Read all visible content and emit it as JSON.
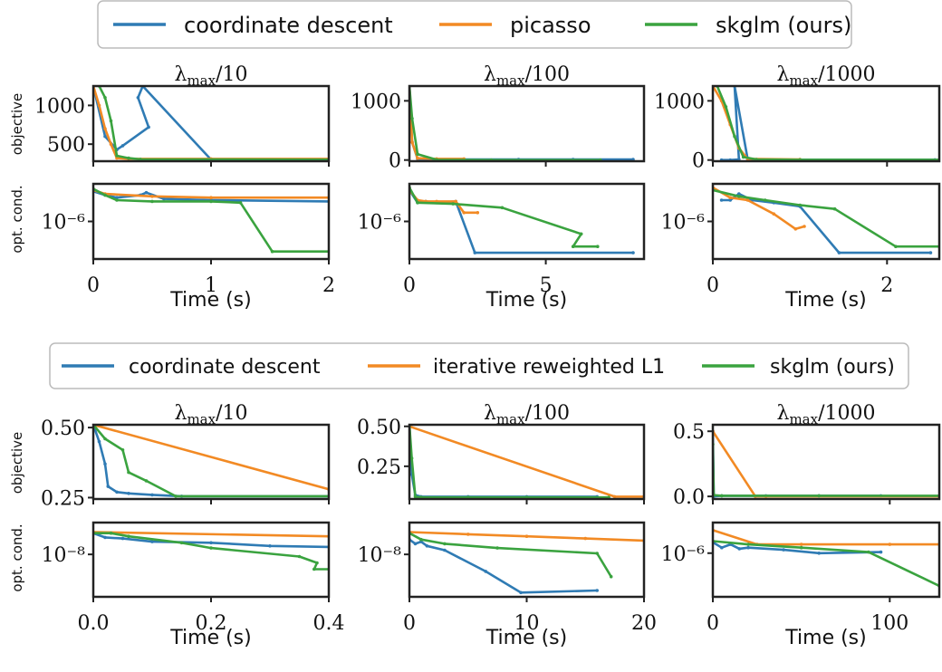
{
  "colors": {
    "cd": "#2f7bb4",
    "picasso": "#f28a24",
    "skglm": "#3aa33f",
    "irl1": "#f28a24",
    "axis": "#222222"
  },
  "legend_top": [
    {
      "key": "cd",
      "label": "coordinate descent"
    },
    {
      "key": "picasso",
      "label": "picasso"
    },
    {
      "key": "skglm",
      "label": "skglm (ours)"
    }
  ],
  "legend_bottom": [
    {
      "key": "cd",
      "label": "coordinate descent"
    },
    {
      "key": "irl1",
      "label": "iterative reweighted L1"
    },
    {
      "key": "skglm",
      "label": "skglm (ours)"
    }
  ],
  "ylabels": {
    "objective": "objective",
    "optcond": "opt. cond."
  },
  "xlabel": "Time (s)",
  "chart_data": [
    {
      "type": "line",
      "row": "top",
      "col": 0,
      "title": "λmax/10",
      "xlim": [
        0,
        2
      ],
      "xticks": [
        0,
        1,
        2
      ],
      "xtick_labels": [
        "0",
        "1",
        "2"
      ],
      "objective": {
        "ylim": [
          280,
          1250
        ],
        "yticks": [
          500,
          1000
        ],
        "ytick_labels": [
          "500",
          "1000"
        ],
        "series": [
          {
            "key": "cd",
            "x": [
              0.0,
              0.1,
              0.2,
              0.25,
              0.47,
              0.38,
              0.42,
              1.0,
              2.0
            ],
            "y": [
              1250,
              600,
              430,
              480,
              720,
              1100,
              1250,
              300,
              300
            ]
          },
          {
            "key": "picasso",
            "x": [
              0.0,
              0.05,
              0.1,
              0.15,
              0.2,
              0.3,
              1.0,
              2.0
            ],
            "y": [
              1250,
              1000,
              700,
              500,
              320,
              310,
              310,
              310
            ]
          },
          {
            "key": "skglm",
            "x": [
              0.05,
              0.1,
              0.15,
              0.2,
              0.3,
              0.4,
              2.0
            ],
            "y": [
              1250,
              1100,
              800,
              350,
              320,
              305,
              300
            ]
          }
        ]
      },
      "optcond": {
        "log": true,
        "ylim": [
          -9,
          -3
        ],
        "yticks": [
          -6
        ],
        "ytick_labels": [
          "10⁻⁶"
        ],
        "series": [
          {
            "key": "cd",
            "x": [
              0.0,
              0.1,
              0.2,
              0.4,
              0.45,
              0.6,
              1.0,
              2.0
            ],
            "y": [
              -3.6,
              -3.9,
              -4.1,
              -3.9,
              -3.7,
              -4.2,
              -4.3,
              -4.4
            ]
          },
          {
            "key": "picasso",
            "x": [
              0.0,
              0.1,
              0.5,
              1.0,
              2.0
            ],
            "y": [
              -3.5,
              -3.8,
              -4.0,
              -4.1,
              -4.1
            ]
          },
          {
            "key": "skglm",
            "x": [
              0.0,
              0.1,
              0.2,
              0.5,
              1.0,
              1.25,
              1.52,
              2.0
            ],
            "y": [
              -3.4,
              -3.9,
              -4.3,
              -4.4,
              -4.4,
              -4.5,
              -8.4,
              -8.4
            ]
          }
        ]
      }
    },
    {
      "type": "line",
      "row": "top",
      "col": 1,
      "title": "λmax/100",
      "xlim": [
        0,
        8.6
      ],
      "xticks": [
        0,
        5
      ],
      "xtick_labels": [
        "0",
        "5"
      ],
      "objective": {
        "ylim": [
          -20,
          1250
        ],
        "yticks": [
          0,
          1000
        ],
        "ytick_labels": [
          "0",
          "1000"
        ],
        "series": [
          {
            "key": "cd",
            "x": [
              0.0,
              0.1,
              0.3,
              1.0,
              2.0,
              4.0,
              6.0,
              8.2
            ],
            "y": [
              1250,
              300,
              20,
              10,
              10,
              10,
              10,
              10
            ]
          },
          {
            "key": "picasso",
            "x": [
              0.0,
              0.1,
              0.3,
              1.0,
              2.0
            ],
            "y": [
              1250,
              300,
              30,
              20,
              20
            ]
          },
          {
            "key": "skglm",
            "x": [
              0.0,
              0.1,
              0.3,
              1.0,
              3.0,
              7.0
            ],
            "y": [
              1250,
              700,
              100,
              5,
              0,
              0
            ]
          }
        ]
      },
      "optcond": {
        "log": true,
        "ylim": [
          -9,
          -3
        ],
        "yticks": [
          -6
        ],
        "ytick_labels": [
          "10⁻⁶"
        ],
        "series": [
          {
            "key": "cd",
            "x": [
              0.0,
              0.3,
              0.6,
              1.0,
              1.7,
              2.4,
              8.2
            ],
            "y": [
              -3.5,
              -4.5,
              -4.4,
              -4.5,
              -4.4,
              -8.5,
              -8.5
            ]
          },
          {
            "key": "picasso",
            "x": [
              0.0,
              0.3,
              0.6,
              1.0,
              1.7,
              2.0,
              2.5
            ],
            "y": [
              -3.5,
              -4.3,
              -4.4,
              -4.4,
              -4.4,
              -5.3,
              -5.3
            ]
          },
          {
            "key": "skglm",
            "x": [
              0.0,
              0.3,
              1.6,
              3.4,
              6.3,
              6.0,
              6.9
            ],
            "y": [
              -3.3,
              -4.5,
              -4.6,
              -4.9,
              -7.0,
              -8.0,
              -8.0
            ]
          }
        ]
      }
    },
    {
      "type": "line",
      "row": "top",
      "col": 2,
      "title": "λmax/1000",
      "xlim": [
        0,
        2.6
      ],
      "xticks": [
        0,
        2
      ],
      "xtick_labels": [
        "0",
        "2"
      ],
      "objective": {
        "ylim": [
          -20,
          1250
        ],
        "yticks": [
          0,
          1000
        ],
        "ytick_labels": [
          "0",
          "1000"
        ],
        "series": [
          {
            "key": "cd",
            "x": [
              0.1,
              0.2,
              0.3,
              0.25,
              0.4,
              1.0,
              2.55
            ],
            "y": [
              0,
              0,
              10,
              1250,
              10,
              5,
              5
            ]
          },
          {
            "key": "picasso",
            "x": [
              0.0,
              0.1,
              0.2,
              0.3,
              0.4,
              1.0
            ],
            "y": [
              1250,
              1000,
              600,
              200,
              20,
              10
            ]
          },
          {
            "key": "skglm",
            "x": [
              0.05,
              0.15,
              0.25,
              0.35,
              0.5,
              1.0,
              2.6
            ],
            "y": [
              1250,
              900,
              400,
              50,
              10,
              5,
              5
            ]
          }
        ]
      },
      "optcond": {
        "log": true,
        "ylim": [
          -9,
          -3
        ],
        "yticks": [
          -6
        ],
        "ytick_labels": [
          "10⁻⁶"
        ],
        "series": [
          {
            "key": "cd",
            "x": [
              0.1,
              0.2,
              0.3,
              0.45,
              0.7,
              1.0,
              1.45,
              2.5
            ],
            "y": [
              -4.3,
              -4.3,
              -3.8,
              -4.3,
              -4.5,
              -4.8,
              -8.5,
              -8.5
            ]
          },
          {
            "key": "picasso",
            "x": [
              0.0,
              0.2,
              0.4,
              0.7,
              0.95,
              1.05
            ],
            "y": [
              -3.3,
              -4.1,
              -4.3,
              -5.4,
              -6.6,
              -6.4
            ]
          },
          {
            "key": "skglm",
            "x": [
              0.0,
              0.3,
              0.6,
              1.0,
              1.4,
              2.1,
              2.6
            ],
            "y": [
              -3.5,
              -4.0,
              -4.3,
              -4.7,
              -5.0,
              -8.0,
              -8.0
            ]
          }
        ]
      }
    },
    {
      "type": "line",
      "row": "bottom",
      "col": 0,
      "title": "λmax/10",
      "xlim": [
        0,
        0.4
      ],
      "xticks": [
        0.0,
        0.2,
        0.4
      ],
      "xtick_labels": [
        "0.0",
        "0.2",
        "0.4"
      ],
      "objective": {
        "ylim": [
          0.245,
          0.51
        ],
        "yticks": [
          0.25,
          0.5
        ],
        "ytick_labels": [
          "0.25",
          "0.50"
        ],
        "series": [
          {
            "key": "cd",
            "x": [
              0.0,
              0.01,
              0.02,
              0.025,
              0.04,
              0.06,
              0.1,
              0.15,
              0.4
            ],
            "y": [
              0.51,
              0.45,
              0.37,
              0.29,
              0.27,
              0.265,
              0.26,
              0.255,
              0.255
            ]
          },
          {
            "key": "irl1",
            "x": [
              0.0,
              0.4
            ],
            "y": [
              0.51,
              0.28
            ]
          },
          {
            "key": "skglm",
            "x": [
              0.0,
              0.02,
              0.05,
              0.06,
              0.09,
              0.14,
              0.4
            ],
            "y": [
              0.51,
              0.46,
              0.42,
              0.34,
              0.31,
              0.255,
              0.255
            ]
          }
        ]
      },
      "optcond": {
        "log": true,
        "ylim": [
          -10,
          -6.5
        ],
        "yticks": [
          -8
        ],
        "ytick_labels": [
          "10⁻⁸"
        ],
        "series": [
          {
            "key": "cd",
            "x": [
              0.0,
              0.02,
              0.05,
              0.1,
              0.2,
              0.3,
              0.4
            ],
            "y": [
              -7.0,
              -7.2,
              -7.25,
              -7.4,
              -7.45,
              -7.6,
              -7.65
            ]
          },
          {
            "key": "irl1",
            "x": [
              0.0,
              0.4
            ],
            "y": [
              -6.95,
              -7.15
            ]
          },
          {
            "key": "skglm",
            "x": [
              0.0,
              0.03,
              0.06,
              0.15,
              0.2,
              0.35,
              0.38,
              0.375,
              0.4
            ],
            "y": [
              -7.0,
              -7.0,
              -7.15,
              -7.45,
              -7.7,
              -8.1,
              -8.4,
              -8.7,
              -8.7
            ]
          }
        ]
      }
    },
    {
      "type": "line",
      "row": "bottom",
      "col": 1,
      "title": "λmax/100",
      "xlim": [
        0,
        20
      ],
      "xticks": [
        0,
        10,
        20
      ],
      "xtick_labels": [
        "0",
        "10",
        "20"
      ],
      "objective": {
        "ylim": [
          0.045,
          0.51
        ],
        "yticks": [
          0.25,
          0.5
        ],
        "ytick_labels": [
          "0.25",
          "0.50"
        ],
        "series": [
          {
            "key": "cd",
            "x": [
              0.0,
              0.2,
              0.5,
              1.0,
              5.0,
              10.0,
              16.0
            ],
            "y": [
              0.51,
              0.2,
              0.07,
              0.06,
              0.06,
              0.06,
              0.06
            ]
          },
          {
            "key": "irl1",
            "x": [
              0.0,
              17.5,
              20.0
            ],
            "y": [
              0.5,
              0.06,
              0.06
            ]
          },
          {
            "key": "skglm",
            "x": [
              0.0,
              0.2,
              0.5,
              1.0,
              5.0,
              10.0,
              17.0
            ],
            "y": [
              0.51,
              0.3,
              0.06,
              0.055,
              0.055,
              0.055,
              0.055
            ]
          }
        ]
      },
      "optcond": {
        "log": true,
        "ylim": [
          -10,
          -6.5
        ],
        "yticks": [
          -8
        ],
        "ytick_labels": [
          "10⁻⁸"
        ],
        "series": [
          {
            "key": "cd",
            "x": [
              0.0,
              0.5,
              1.0,
              1.5,
              3.0,
              6.5,
              9.5,
              16.0
            ],
            "y": [
              -7.3,
              -7.5,
              -7.4,
              -7.6,
              -7.8,
              -8.8,
              -9.8,
              -9.7
            ]
          },
          {
            "key": "irl1",
            "x": [
              0.0,
              5.0,
              10.0,
              15.0,
              20.0
            ],
            "y": [
              -6.95,
              -7.05,
              -7.15,
              -7.25,
              -7.35
            ]
          },
          {
            "key": "skglm",
            "x": [
              0.0,
              1.0,
              3.0,
              7.5,
              16.0,
              17.2
            ],
            "y": [
              -7.0,
              -7.3,
              -7.5,
              -7.7,
              -7.95,
              -9.05
            ]
          }
        ]
      }
    },
    {
      "type": "line",
      "row": "bottom",
      "col": 2,
      "title": "λmax/1000",
      "xlim": [
        0,
        128
      ],
      "xticks": [
        0,
        100
      ],
      "xtick_labels": [
        "0",
        "100"
      ],
      "objective": {
        "ylim": [
          -0.02,
          0.55
        ],
        "yticks": [
          0.0,
          0.5
        ],
        "ytick_labels": [
          "0.0",
          "0.5"
        ],
        "series": [
          {
            "key": "cd",
            "x": [
              0.0,
              0.5,
              5.0,
              30.0,
              60.0,
              95.0
            ],
            "y": [
              0.5,
              0.0,
              0.005,
              0.005,
              0.005,
              0.005
            ]
          },
          {
            "key": "irl1",
            "x": [
              0.0,
              24.0,
              30.0,
              128.0
            ],
            "y": [
              0.5,
              0.0,
              0.0,
              0.0
            ]
          },
          {
            "key": "skglm",
            "x": [
              0.0,
              0.5,
              5.0,
              60.0,
              128.0
            ],
            "y": [
              0.4,
              0.01,
              0.005,
              0.005,
              0.005
            ]
          }
        ]
      },
      "optcond": {
        "log": true,
        "ylim": [
          -8,
          -4.6
        ],
        "yticks": [
          -6
        ],
        "ytick_labels": [
          "10⁻⁶"
        ],
        "series": [
          {
            "key": "cd",
            "x": [
              0.0,
              5.0,
              10.0,
              15.0,
              20.0,
              40.0,
              60.0,
              95.0
            ],
            "y": [
              -5.5,
              -5.75,
              -5.6,
              -5.8,
              -5.75,
              -5.85,
              -6.0,
              -5.95
            ]
          },
          {
            "key": "irl1",
            "x": [
              0.0,
              25.0,
              50.0,
              100.0,
              128.0
            ],
            "y": [
              -4.95,
              -5.6,
              -5.6,
              -5.6,
              -5.6
            ]
          },
          {
            "key": "skglm",
            "x": [
              0.0,
              20.0,
              50.0,
              88.0,
              128.0
            ],
            "y": [
              -5.45,
              -5.6,
              -5.75,
              -5.95,
              -7.5
            ]
          }
        ]
      }
    }
  ]
}
